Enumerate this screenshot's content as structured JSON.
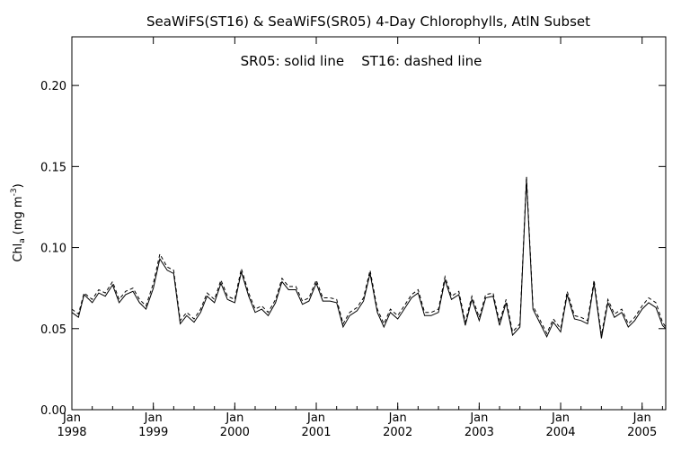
{
  "chart_data": {
    "type": "line",
    "title": "SeaWiFS(ST16) & SeaWiFS(SR05) 4-Day Chlorophylls, AtlN Subset",
    "annotation": "SR05: solid line    ST16: dashed line",
    "ylabel": "Chl",
    "ylabel_sub": "a",
    "ylabel_unit_open": "(mg m",
    "ylabel_unit_sup": "-3",
    "ylabel_unit_close": ")",
    "ylim": [
      0.0,
      0.23
    ],
    "yticks": [
      "0.00",
      "0.05",
      "0.10",
      "0.15",
      "0.20"
    ],
    "xlim": [
      1998.0,
      2005.29
    ],
    "xticks": [
      {
        "month": "Jan",
        "year": "1998",
        "x": 1998.0
      },
      {
        "month": "Jan",
        "year": "1999",
        "x": 1999.0
      },
      {
        "month": "Jan",
        "year": "2000",
        "x": 2000.0
      },
      {
        "month": "Jan",
        "year": "2001",
        "x": 2001.0
      },
      {
        "month": "Jan",
        "year": "2002",
        "x": 2002.0
      },
      {
        "month": "Jan",
        "year": "2003",
        "x": 2003.0
      },
      {
        "month": "Jan",
        "year": "2004",
        "x": 2004.0
      },
      {
        "month": "Jan",
        "year": "2005",
        "x": 2005.0
      }
    ],
    "grid": false,
    "x": [
      1998.0,
      1998.08,
      1998.15,
      1998.25,
      1998.33,
      1998.41,
      1998.5,
      1998.58,
      1998.66,
      1998.75,
      1998.83,
      1998.91,
      1999.0,
      1999.08,
      1999.17,
      1999.25,
      1999.33,
      1999.41,
      1999.5,
      1999.58,
      1999.66,
      1999.75,
      1999.83,
      1999.91,
      2000.0,
      2000.08,
      2000.17,
      2000.25,
      2000.33,
      2000.41,
      2000.5,
      2000.58,
      2000.66,
      2000.75,
      2000.83,
      2000.91,
      2001.0,
      2001.08,
      2001.17,
      2001.25,
      2001.33,
      2001.41,
      2001.5,
      2001.58,
      2001.66,
      2001.75,
      2001.83,
      2001.91,
      2002.0,
      2002.08,
      2002.17,
      2002.25,
      2002.33,
      2002.41,
      2002.5,
      2002.58,
      2002.66,
      2002.75,
      2002.83,
      2002.91,
      2003.0,
      2003.08,
      2003.17,
      2003.25,
      2003.33,
      2003.41,
      2003.5,
      2003.58,
      2003.66,
      2003.75,
      2003.83,
      2003.91,
      2004.0,
      2004.08,
      2004.17,
      2004.25,
      2004.33,
      2004.41,
      2004.5,
      2004.58,
      2004.66,
      2004.75,
      2004.83,
      2004.91,
      2005.0,
      2005.08,
      2005.17,
      2005.25,
      2005.29
    ],
    "series": [
      {
        "name": "SR05",
        "dash": "solid",
        "values": [
          0.06,
          0.057,
          0.071,
          0.066,
          0.072,
          0.07,
          0.077,
          0.066,
          0.071,
          0.073,
          0.066,
          0.062,
          0.075,
          0.093,
          0.086,
          0.084,
          0.053,
          0.058,
          0.054,
          0.06,
          0.07,
          0.066,
          0.078,
          0.068,
          0.066,
          0.085,
          0.07,
          0.06,
          0.062,
          0.058,
          0.066,
          0.079,
          0.074,
          0.074,
          0.065,
          0.067,
          0.078,
          0.067,
          0.067,
          0.066,
          0.051,
          0.058,
          0.061,
          0.067,
          0.084,
          0.06,
          0.051,
          0.06,
          0.056,
          0.062,
          0.069,
          0.072,
          0.058,
          0.058,
          0.06,
          0.08,
          0.068,
          0.071,
          0.052,
          0.068,
          0.055,
          0.069,
          0.07,
          0.052,
          0.066,
          0.046,
          0.051,
          0.142,
          0.062,
          0.053,
          0.045,
          0.054,
          0.048,
          0.071,
          0.056,
          0.055,
          0.053,
          0.078,
          0.044,
          0.066,
          0.057,
          0.06,
          0.051,
          0.055,
          0.062,
          0.066,
          0.063,
          0.052,
          0.05
        ]
      },
      {
        "name": "ST16",
        "dash": "dashed",
        "values": [
          0.062,
          0.059,
          0.072,
          0.068,
          0.074,
          0.072,
          0.079,
          0.068,
          0.073,
          0.075,
          0.068,
          0.064,
          0.078,
          0.096,
          0.088,
          0.086,
          0.055,
          0.06,
          0.056,
          0.062,
          0.072,
          0.068,
          0.08,
          0.07,
          0.068,
          0.087,
          0.072,
          0.062,
          0.064,
          0.06,
          0.068,
          0.081,
          0.076,
          0.076,
          0.067,
          0.069,
          0.08,
          0.069,
          0.069,
          0.068,
          0.053,
          0.06,
          0.063,
          0.069,
          0.086,
          0.062,
          0.053,
          0.062,
          0.058,
          0.064,
          0.071,
          0.074,
          0.06,
          0.06,
          0.062,
          0.082,
          0.07,
          0.073,
          0.054,
          0.07,
          0.057,
          0.071,
          0.072,
          0.054,
          0.068,
          0.048,
          0.053,
          0.144,
          0.064,
          0.055,
          0.047,
          0.056,
          0.05,
          0.073,
          0.058,
          0.057,
          0.055,
          0.08,
          0.046,
          0.068,
          0.059,
          0.062,
          0.053,
          0.057,
          0.064,
          0.069,
          0.066,
          0.054,
          0.051
        ]
      }
    ]
  }
}
